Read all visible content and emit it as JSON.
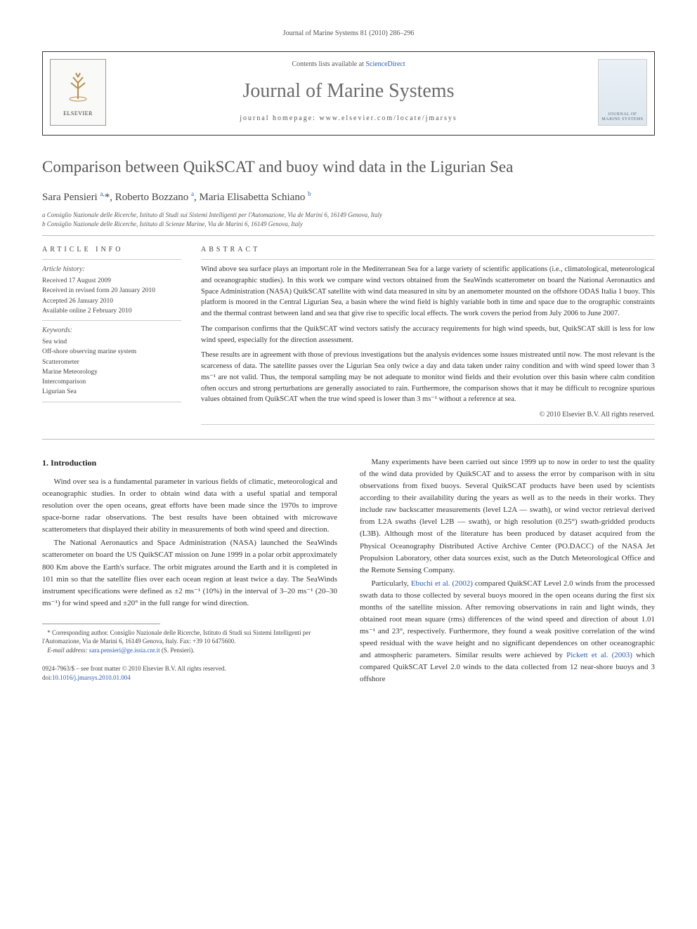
{
  "running_head": "Journal of Marine Systems 81 (2010) 286–296",
  "masthead": {
    "contents_text": "Contents lists available at ",
    "contents_link": "ScienceDirect",
    "journal_name": "Journal of Marine Systems",
    "homepage_label": "journal homepage: ",
    "homepage_url": "www.elsevier.com/locate/jmarsys",
    "publisher": "ELSEVIER",
    "cover_text": "JOURNAL OF MARINE SYSTEMS"
  },
  "article": {
    "title": "Comparison between QuikSCAT and buoy wind data in the Ligurian Sea",
    "authors_html": "Sara Pensieri <sup>a,</sup>*, Roberto Bozzano <sup>a</sup>, Maria Elisabetta Schiano <sup>b</sup>",
    "affiliations": [
      "a Consiglio Nazionale delle Ricerche, Istituto di Studi sui Sistemi Intelligenti per l'Automazione, Via de Marini 6, 16149 Genova, Italy",
      "b Consiglio Nazionale delle Ricerche, Istituto di Scienze Marine, Via de Marini 6, 16149 Genova, Italy"
    ]
  },
  "info": {
    "heading": "ARTICLE INFO",
    "history_label": "Article history:",
    "history": [
      "Received 17 August 2009",
      "Received in revised form 20 January 2010",
      "Accepted 26 January 2010",
      "Available online 2 February 2010"
    ],
    "keywords_label": "Keywords:",
    "keywords": [
      "Sea wind",
      "Off-shore observing marine system",
      "Scatterometer",
      "Marine Meteorology",
      "Intercomparison",
      "Ligurian Sea"
    ]
  },
  "abstract": {
    "heading": "ABSTRACT",
    "paragraphs": [
      "Wind above sea surface plays an important role in the Mediterranean Sea for a large variety of scientific applications (i.e., climatological, meteorological and oceanographic studies). In this work we compare wind vectors obtained from the SeaWinds scatterometer on board the National Aeronautics and Space Administration (NASA) QuikSCAT satellite with wind data measured in situ by an anemometer mounted on the offshore ODAS Italia 1 buoy. This platform is moored in the Central Ligurian Sea, a basin where the wind field is highly variable both in time and space due to the orographic constraints and the thermal contrast between land and sea that give rise to specific local effects. The work covers the period from July 2006 to June 2007.",
      "The comparison confirms that the QuikSCAT wind vectors satisfy the accuracy requirements for high wind speeds, but, QuikSCAT skill is less for low wind speed, especially for the direction assessment.",
      "These results are in agreement with those of previous investigations but the analysis evidences some issues mistreated until now. The most relevant is the scarceness of data. The satellite passes over the Ligurian Sea only twice a day and data taken under rainy condition and with wind speed lower than 3 ms⁻¹ are not valid. Thus, the temporal sampling may be not adequate to monitor wind fields and their evolution over this basin where calm condition often occurs and strong perturbations are generally associated to rain. Furthermore, the comparison shows that it may be difficult to recognize spurious values obtained from QuikSCAT when the true wind speed is lower than 3 ms⁻¹ without a reference at sea."
    ],
    "copyright": "© 2010 Elsevier B.V. All rights reserved."
  },
  "body": {
    "section_heading": "1. Introduction",
    "left": [
      "Wind over sea is a fundamental parameter in various fields of climatic, meteorological and oceanographic studies. In order to obtain wind data with a useful spatial and temporal resolution over the open oceans, great efforts have been made since the 1970s to improve space-borne radar observations. The best results have been obtained with microwave scatterometers that displayed their ability in measurements of both wind speed and direction.",
      "The National Aeronautics and Space Administration (NASA) launched the SeaWinds scatterometer on board the US QuikSCAT mission on June 1999 in a polar orbit approximately 800 Km above the Earth's surface. The orbit migrates around the Earth and it is completed in 101 min so that the satellite flies over each ocean region at least twice a day. The SeaWinds instrument specifications were defined as ±2 ms⁻¹ (10%) in the interval of 3–20 ms⁻¹ (20–30 ms⁻¹) for wind speed and ±20° in the full range for wind direction."
    ],
    "right": [
      "Many experiments have been carried out since 1999 up to now in order to test the quality of the wind data provided by QuikSCAT and to assess the error by comparison with in situ observations from fixed buoys. Several QuikSCAT products have been used by scientists according to their availability during the years as well as to the needs in their works. They include raw backscatter measurements (level L2A — swath), or wind vector retrieval derived from L2A swaths (level L2B — swath), or high resolution (0.25°) swath-gridded products (L3B). Although most of the literature has been produced by dataset acquired from the Physical Oceanography Distributed Active Archive Center (PO.DACC) of the NASA Jet Propulsion Laboratory, other data sources exist, such as the Dutch Meteorological Office and the Remote Sensing Company.",
      "Particularly, <a href='#'>Ebuchi et al. (2002)</a> compared QuikSCAT Level 2.0 winds from the processed swath data to those collected by several buoys moored in the open oceans during the first six months of the satellite mission. After removing observations in rain and light winds, they obtained root mean square (rms) differences of the wind speed and direction of about 1.01 ms⁻¹ and 23°, respectively. Furthermore, they found a weak positive correlation of the wind speed residual with the wave height and no significant dependences on other oceanographic and atmospheric parameters. Similar results were achieved by <a href='#'>Pickett et al. (2003)</a> which compared QuikSCAT Level 2.0 winds to the data collected from 12 near-shore buoys and 3 offshore"
    ]
  },
  "footnote": {
    "corr": "* Corresponding author. Consiglio Nazionale delle Ricerche, Istituto di Studi sui Sistemi Intelligenti per l'Automazione, Via de Marini 6, 16149 Genova, Italy. Fax: +39 10 6475600.",
    "email_label": "E-mail address: ",
    "email": "sara.pensieri@ge.issia.cnr.it",
    "email_paren": " (S. Pensieri)."
  },
  "footer": {
    "issn_line": "0924-7963/$ – see front matter © 2010 Elsevier B.V. All rights reserved.",
    "doi_label": "doi:",
    "doi": "10.1016/j.jmarsys.2010.01.004"
  }
}
